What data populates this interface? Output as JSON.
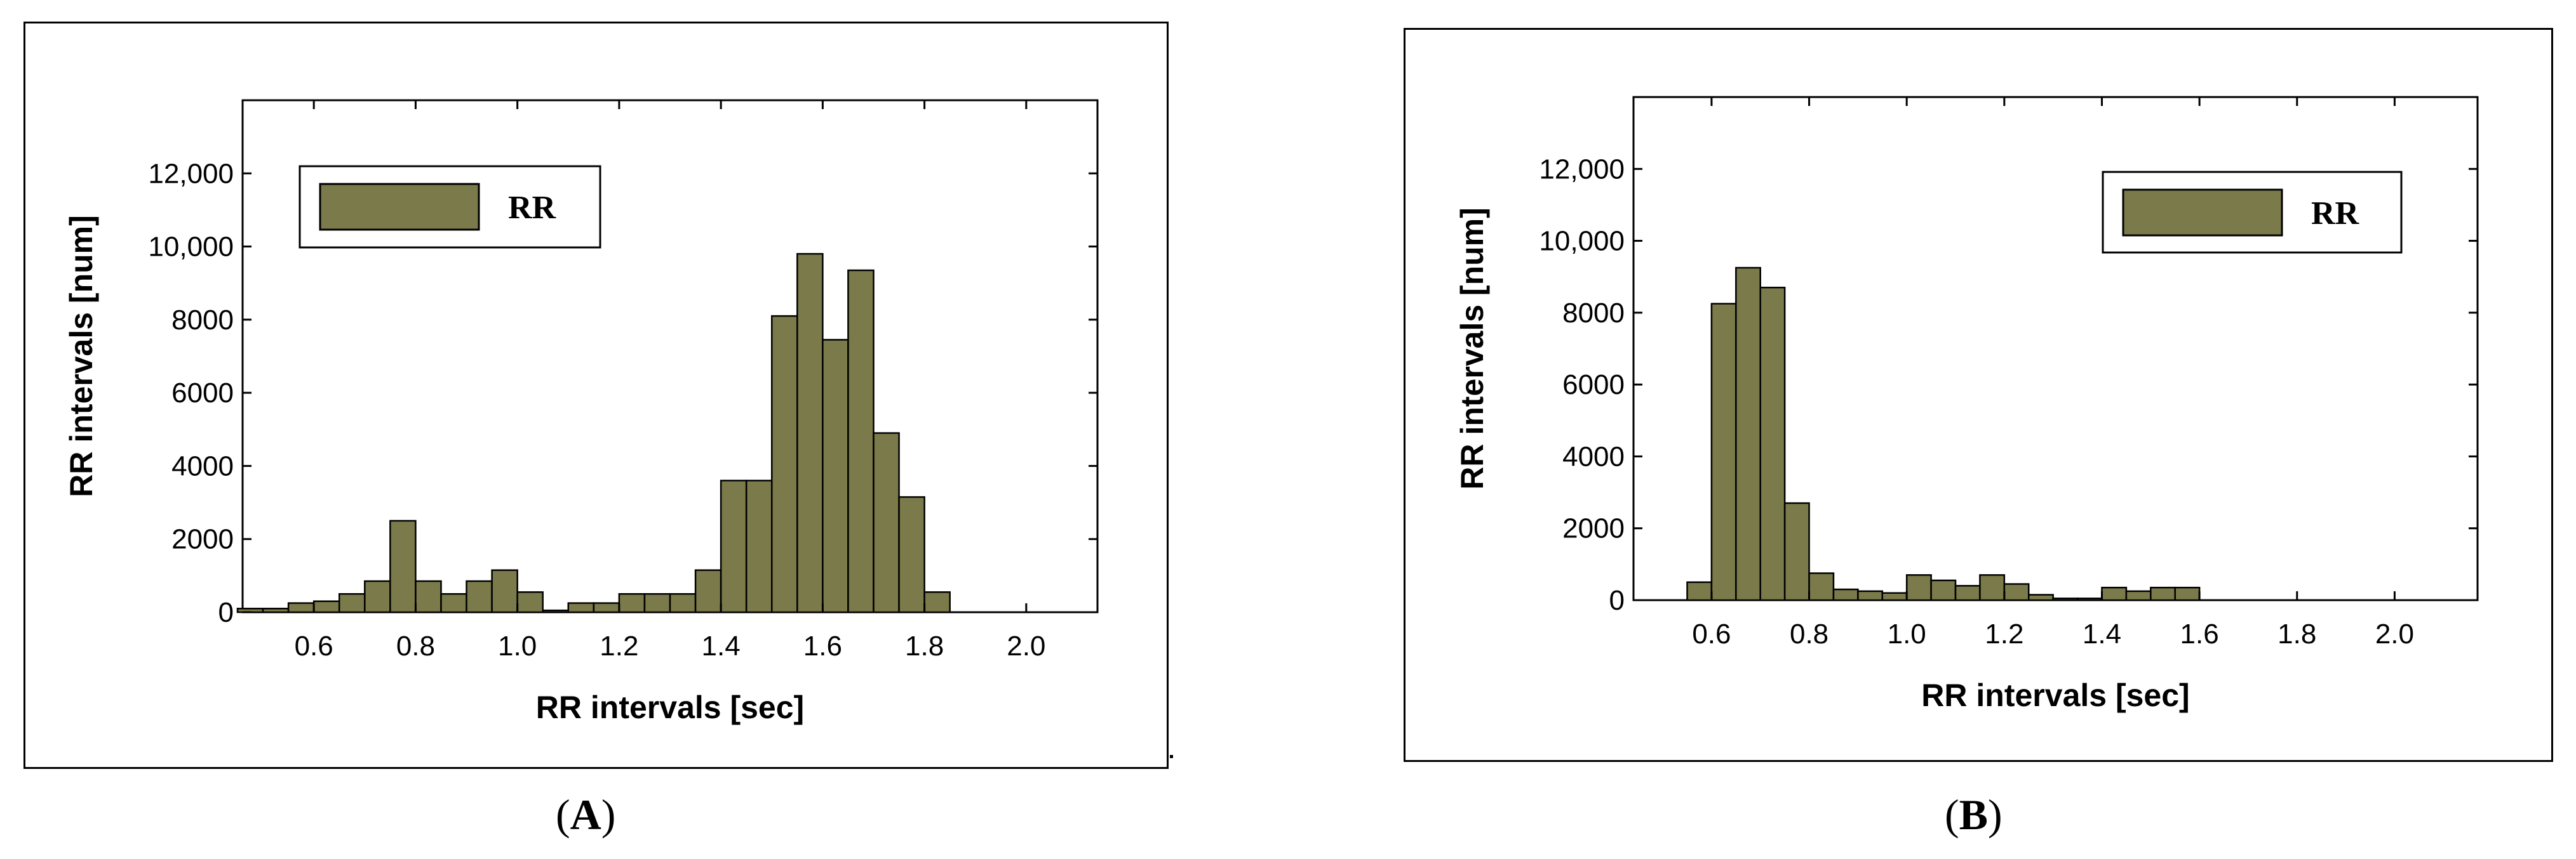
{
  "colors": {
    "bar_fill": "#7a7a4a",
    "bar_edge": "#000000",
    "background": "#ffffff"
  },
  "chart_data": [
    {
      "type": "bar",
      "panel_label": "A",
      "xlabel": "RR intervals [sec]",
      "ylabel": "RR intervals [num]",
      "xlim": [
        0.46,
        2.14
      ],
      "ylim": [
        0,
        14000
      ],
      "xticks": [
        0.6,
        0.8,
        1.0,
        1.2,
        1.4,
        1.6,
        1.8,
        2.0
      ],
      "xtick_labels": [
        "0.6",
        "0.8",
        "1.0",
        "1.2",
        "1.4",
        "1.6",
        "1.8",
        "2.0"
      ],
      "yticks": [
        0,
        2000,
        4000,
        6000,
        8000,
        10000,
        12000
      ],
      "ytick_labels": [
        "0",
        "2000",
        "4000",
        "6000",
        "8000",
        "10,000",
        "12,000"
      ],
      "bin_width": 0.05,
      "legend": {
        "label": "RR",
        "position": "top-left"
      },
      "grid": false,
      "bins": [
        {
          "x": 0.475,
          "y": 100
        },
        {
          "x": 0.525,
          "y": 100
        },
        {
          "x": 0.575,
          "y": 250
        },
        {
          "x": 0.625,
          "y": 300
        },
        {
          "x": 0.675,
          "y": 500
        },
        {
          "x": 0.725,
          "y": 850
        },
        {
          "x": 0.775,
          "y": 2500
        },
        {
          "x": 0.825,
          "y": 850
        },
        {
          "x": 0.875,
          "y": 500
        },
        {
          "x": 0.925,
          "y": 850
        },
        {
          "x": 0.975,
          "y": 1150
        },
        {
          "x": 1.025,
          "y": 550
        },
        {
          "x": 1.075,
          "y": 50
        },
        {
          "x": 1.125,
          "y": 250
        },
        {
          "x": 1.175,
          "y": 250
        },
        {
          "x": 1.225,
          "y": 500
        },
        {
          "x": 1.275,
          "y": 500
        },
        {
          "x": 1.325,
          "y": 500
        },
        {
          "x": 1.375,
          "y": 1150
        },
        {
          "x": 1.425,
          "y": 3600
        },
        {
          "x": 1.475,
          "y": 3600
        },
        {
          "x": 1.525,
          "y": 8100
        },
        {
          "x": 1.575,
          "y": 9800
        },
        {
          "x": 1.625,
          "y": 7450
        },
        {
          "x": 1.675,
          "y": 9350
        },
        {
          "x": 1.725,
          "y": 4900
        },
        {
          "x": 1.775,
          "y": 3150
        },
        {
          "x": 1.825,
          "y": 550
        }
      ]
    },
    {
      "type": "bar",
      "panel_label": "B",
      "xlabel": "RR intervals [sec]",
      "ylabel": "RR intervals [num]",
      "xlim": [
        0.44,
        2.17
      ],
      "ylim": [
        0,
        14000
      ],
      "xticks": [
        0.6,
        0.8,
        1.0,
        1.2,
        1.4,
        1.6,
        1.8,
        2.0
      ],
      "xtick_labels": [
        "0.6",
        "0.8",
        "1.0",
        "1.2",
        "1.4",
        "1.6",
        "1.8",
        "2.0"
      ],
      "yticks": [
        0,
        2000,
        4000,
        6000,
        8000,
        10000,
        12000
      ],
      "ytick_labels": [
        "0",
        "2000",
        "4000",
        "6000",
        "8000",
        "10,000",
        "12,000"
      ],
      "bin_width": 0.05,
      "legend": {
        "label": "RR",
        "position": "top-right"
      },
      "grid": false,
      "bins": [
        {
          "x": 0.575,
          "y": 500
        },
        {
          "x": 0.625,
          "y": 8250
        },
        {
          "x": 0.675,
          "y": 9250
        },
        {
          "x": 0.725,
          "y": 8700
        },
        {
          "x": 0.775,
          "y": 2700
        },
        {
          "x": 0.825,
          "y": 750
        },
        {
          "x": 0.875,
          "y": 300
        },
        {
          "x": 0.925,
          "y": 250
        },
        {
          "x": 0.975,
          "y": 200
        },
        {
          "x": 1.025,
          "y": 700
        },
        {
          "x": 1.075,
          "y": 550
        },
        {
          "x": 1.125,
          "y": 400
        },
        {
          "x": 1.175,
          "y": 700
        },
        {
          "x": 1.225,
          "y": 450
        },
        {
          "x": 1.275,
          "y": 150
        },
        {
          "x": 1.325,
          "y": 50
        },
        {
          "x": 1.375,
          "y": 50
        },
        {
          "x": 1.425,
          "y": 350
        },
        {
          "x": 1.475,
          "y": 250
        },
        {
          "x": 1.525,
          "y": 350
        },
        {
          "x": 1.575,
          "y": 350
        }
      ]
    }
  ]
}
